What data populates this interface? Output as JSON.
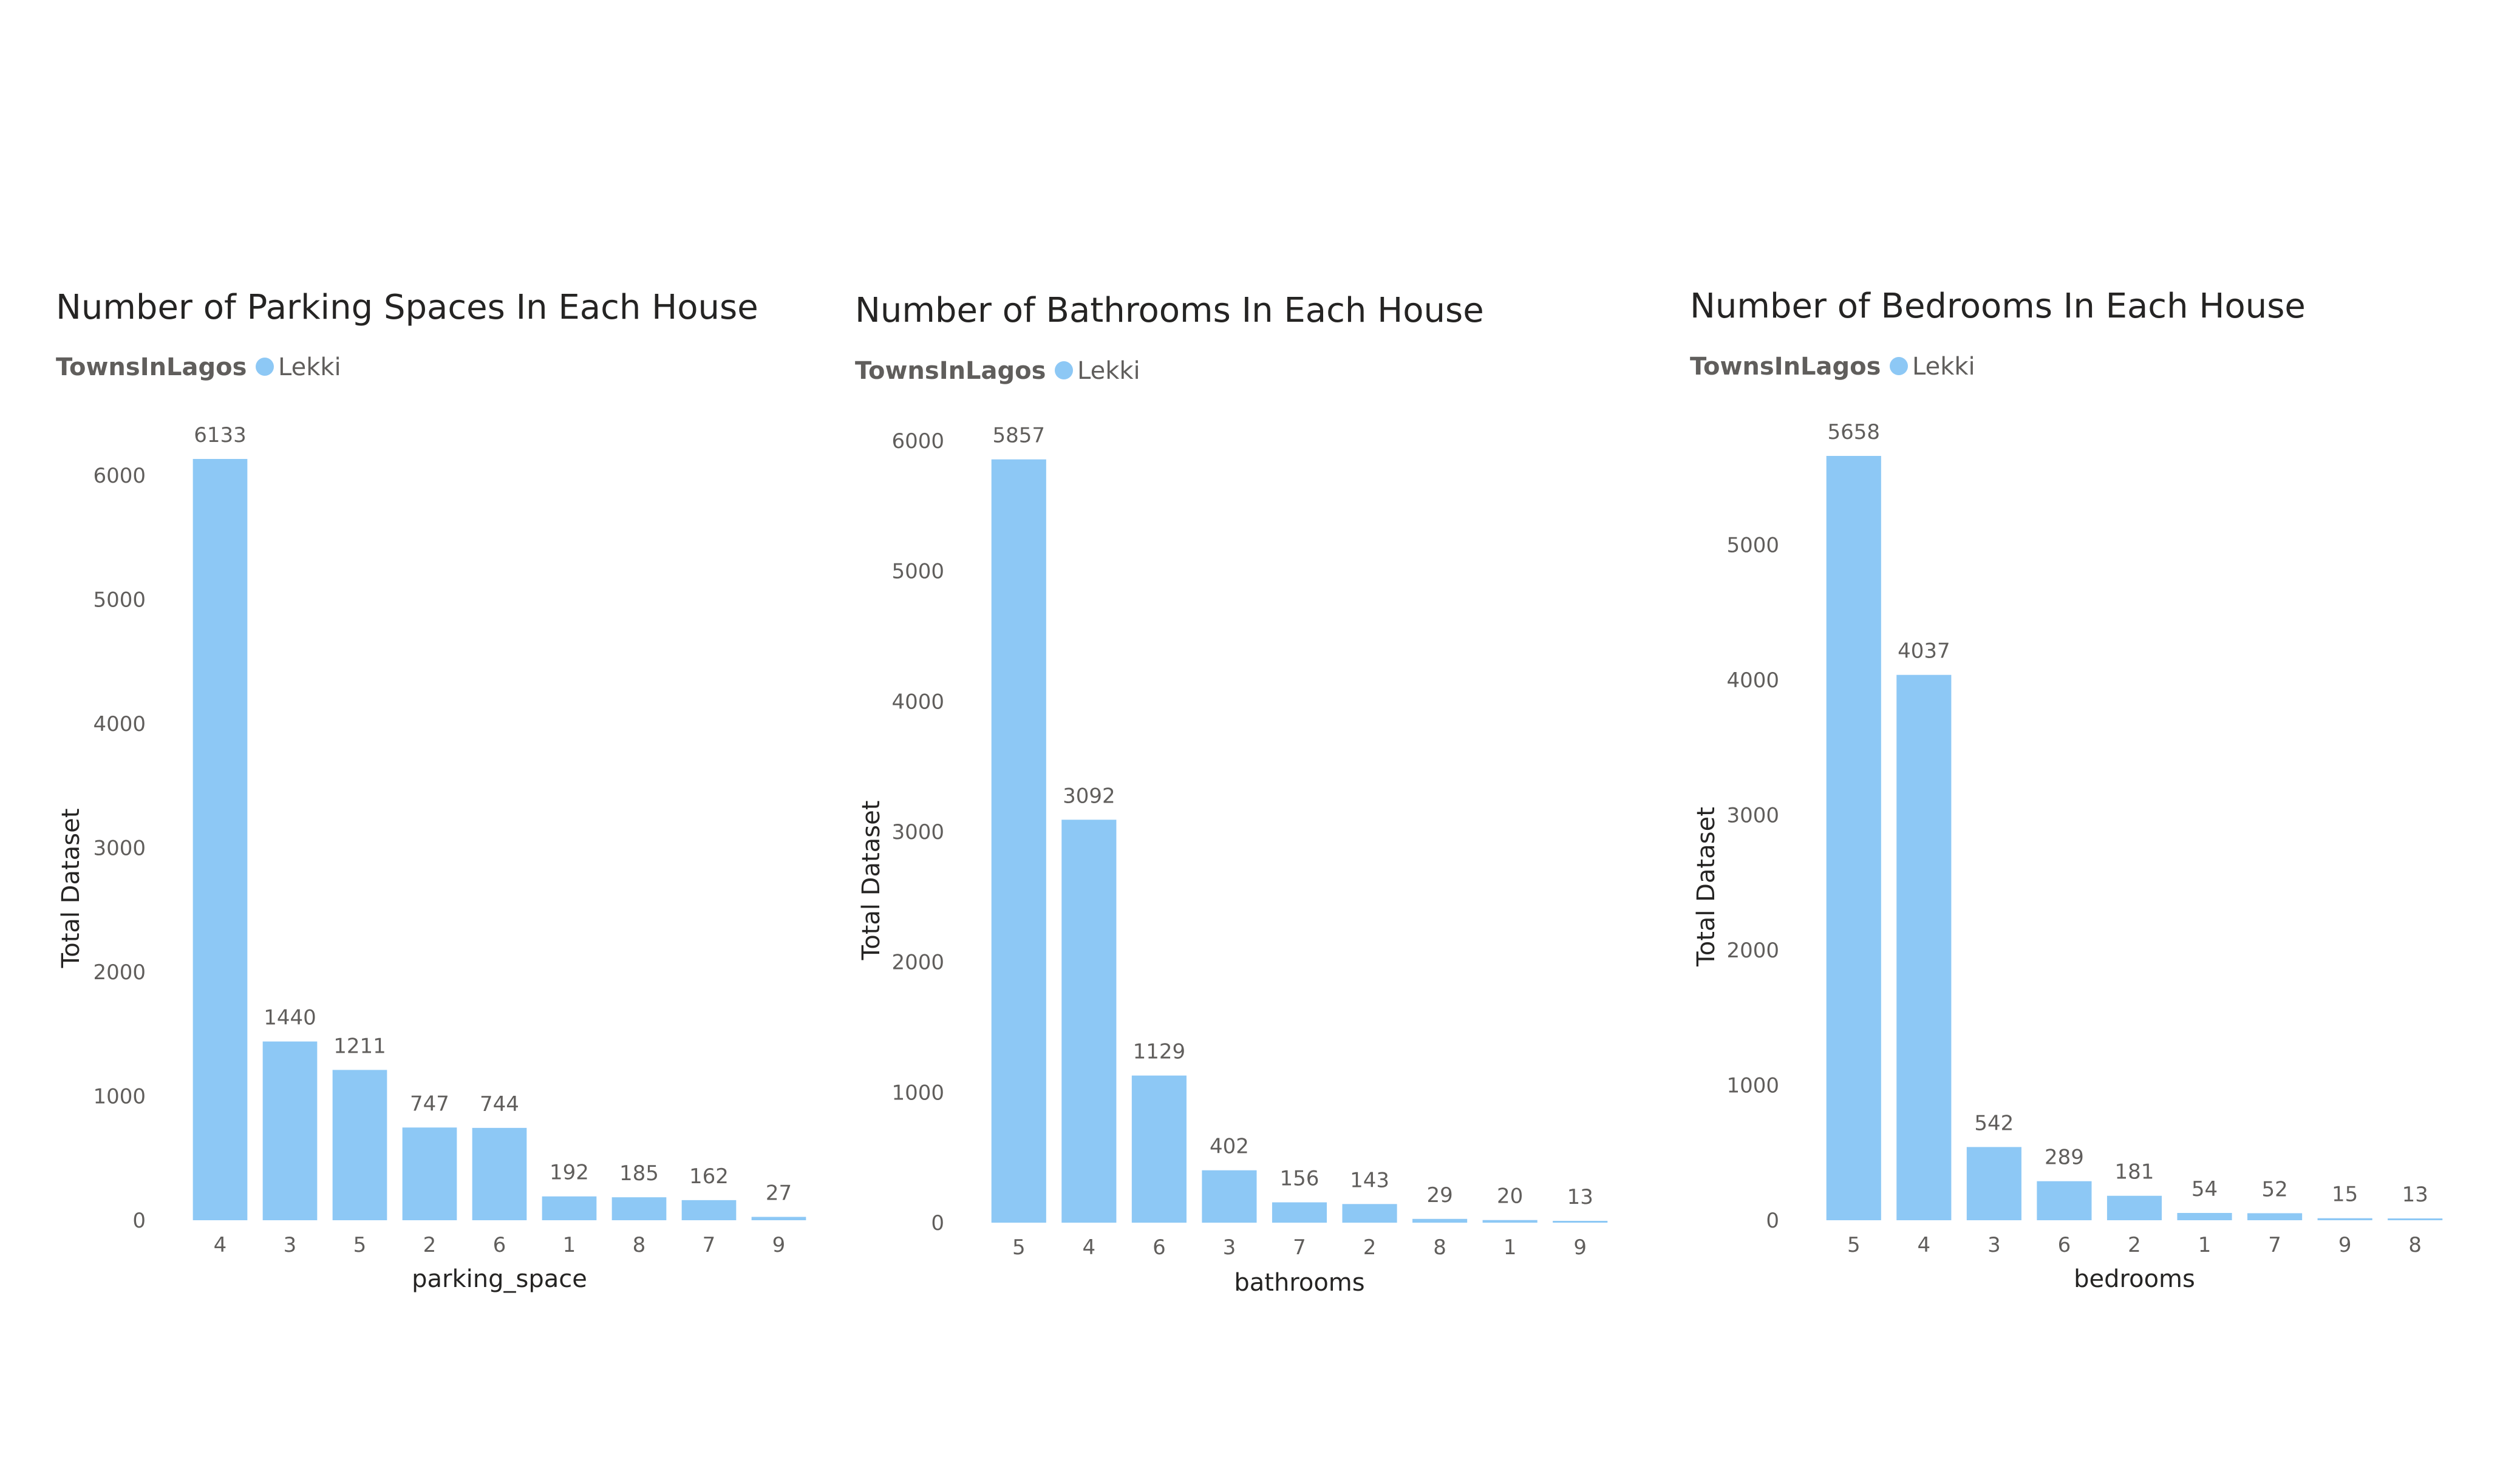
{
  "chart_data": [
    {
      "type": "bar",
      "title": "Number of Parking Spaces In Each House",
      "legend_title": "TownsInLagos",
      "series": [
        {
          "name": "Lekki",
          "values": [
            6133,
            1440,
            1211,
            747,
            744,
            192,
            185,
            162,
            27
          ]
        }
      ],
      "categories": [
        "4",
        "3",
        "5",
        "2",
        "6",
        "1",
        "8",
        "7",
        "9"
      ],
      "xlabel": "parking_space",
      "ylabel": "Total Dataset",
      "yticks": [
        0,
        1000,
        2000,
        3000,
        4000,
        5000,
        6000
      ],
      "ylim": [
        0,
        6133
      ],
      "color": "#8DC8F5",
      "grid": false,
      "legend_position": "top-left"
    },
    {
      "type": "bar",
      "title": "Number of Bathrooms In Each House",
      "legend_title": "TownsInLagos",
      "series": [
        {
          "name": "Lekki",
          "values": [
            5857,
            3092,
            1129,
            402,
            156,
            143,
            29,
            20,
            13
          ]
        }
      ],
      "categories": [
        "5",
        "4",
        "6",
        "3",
        "7",
        "2",
        "8",
        "1",
        "9"
      ],
      "xlabel": "bathrooms",
      "ylabel": "Total Dataset",
      "yticks": [
        0,
        1000,
        2000,
        3000,
        4000,
        5000,
        6000
      ],
      "ylim": [
        0,
        6000
      ],
      "color": "#8DC8F5",
      "grid": false,
      "legend_position": "top-left"
    },
    {
      "type": "bar",
      "title": "Number of Bedrooms In Each House",
      "legend_title": "TownsInLagos",
      "series": [
        {
          "name": "Lekki",
          "values": [
            5658,
            4037,
            542,
            289,
            181,
            54,
            52,
            15,
            13
          ]
        }
      ],
      "categories": [
        "5",
        "4",
        "3",
        "6",
        "2",
        "1",
        "7",
        "9",
        "8"
      ],
      "xlabel": "bedrooms",
      "ylabel": "Total Dataset",
      "yticks": [
        0,
        1000,
        2000,
        3000,
        4000,
        5000
      ],
      "ylim": [
        0,
        5658
      ],
      "color": "#8DC8F5",
      "grid": false,
      "legend_position": "top-left"
    }
  ]
}
